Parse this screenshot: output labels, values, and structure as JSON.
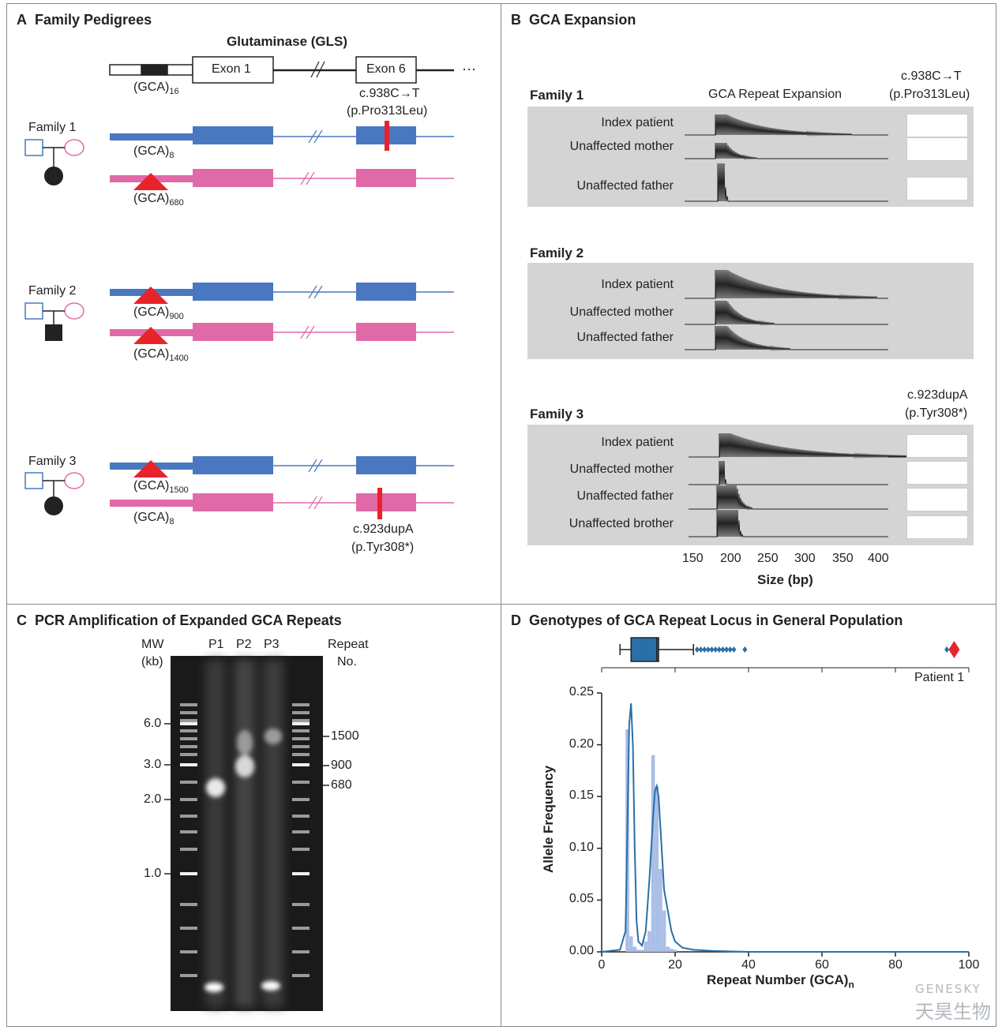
{
  "panels": {
    "a": {
      "letter": "A",
      "title": "Family Pedigrees"
    },
    "b": {
      "letter": "B",
      "title": "GCA Expansion"
    },
    "c": {
      "letter": "C",
      "title": "PCR Amplification of Expanded GCA Repeats"
    },
    "d": {
      "letter": "D",
      "title": "Genotypes of GCA Repeat Locus in General Population"
    }
  },
  "gene": {
    "name": "Glutaminase (GLS)",
    "exon1": "Exon 1",
    "exon6": "Exon 6",
    "ellipsis": "···",
    "ref_repeat": "(GCA)",
    "ref_sub": "16"
  },
  "families": [
    {
      "label": "Family 1",
      "mutation": [
        "c.938C→T",
        "(p.Pro313Leu)"
      ],
      "alleles": [
        {
          "text": "(GCA)",
          "sub": "8"
        },
        {
          "text": "(GCA)",
          "sub": "680"
        }
      ]
    },
    {
      "label": "Family 2",
      "alleles": [
        {
          "text": "(GCA)",
          "sub": "900"
        },
        {
          "text": "(GCA)",
          "sub": "1400"
        }
      ]
    },
    {
      "label": "Family 3",
      "mutation": [
        "c.923dupA",
        "(p.Tyr308*)"
      ],
      "alleles": [
        {
          "text": "(GCA)",
          "sub": "1500"
        },
        {
          "text": "(GCA)",
          "sub": "8"
        }
      ]
    }
  ],
  "expansion": {
    "header": "GCA Repeat Expansion",
    "fam1": {
      "label": "Family 1",
      "mutation": [
        "c.938C→T",
        "(p.Pro313Leu)"
      ],
      "traces": [
        "Index patient",
        "Unaffected mother",
        "Unaffected father"
      ]
    },
    "fam2": {
      "label": "Family 2",
      "traces": [
        "Index patient",
        "Unaffected mother",
        "Unaffected father"
      ]
    },
    "fam3": {
      "label": "Family 3",
      "mutation": [
        "c.923dupA",
        "(p.Tyr308*)"
      ],
      "traces": [
        "Index patient",
        "Unaffected mother",
        "Unaffected father",
        "Unaffected brother"
      ]
    },
    "xticks": [
      "150",
      "200",
      "250",
      "300",
      "350",
      "400"
    ],
    "xlabel": "Size (bp)"
  },
  "gel": {
    "mw_label": [
      "MW",
      "(kb)"
    ],
    "lanes": [
      "P1",
      "P2",
      "P3"
    ],
    "repeat_label": [
      "Repeat",
      "No."
    ],
    "mw_ticks": [
      "6.0",
      "3.0",
      "2.0",
      "1.0"
    ],
    "repeat_ticks": [
      "1500",
      "900",
      "680"
    ]
  },
  "chart_data": {
    "type": "histogram",
    "title": "Genotypes of GCA Repeat Locus in General Population",
    "xlabel": "Repeat Number (GCA)",
    "xlabel_sub": "n",
    "ylabel": "Allele Frequency",
    "xlim": [
      0,
      100
    ],
    "ylim": [
      0,
      0.25
    ],
    "xticks": [
      "0",
      "20",
      "40",
      "60",
      "80",
      "100"
    ],
    "yticks": [
      "0.00",
      "0.05",
      "0.10",
      "0.15",
      "0.20",
      "0.25"
    ],
    "bars": {
      "x": [
        7,
        8,
        9,
        10,
        11,
        12,
        13,
        14,
        15,
        16,
        17,
        18,
        19,
        20
      ],
      "values": [
        0.215,
        0.015,
        0.005,
        0.002,
        0.002,
        0.01,
        0.02,
        0.19,
        0.16,
        0.08,
        0.04,
        0.005,
        0.003,
        0.002
      ]
    },
    "density": {
      "x": [
        0,
        5,
        6.5,
        7,
        7.5,
        8,
        8.5,
        9,
        9.5,
        10,
        11,
        12,
        13,
        14,
        14.5,
        15,
        15.5,
        16,
        17,
        18,
        19,
        20,
        22,
        25,
        30,
        40,
        100
      ],
      "y": [
        0,
        0.002,
        0.02,
        0.12,
        0.22,
        0.24,
        0.2,
        0.1,
        0.03,
        0.01,
        0.006,
        0.02,
        0.07,
        0.13,
        0.155,
        0.16,
        0.15,
        0.12,
        0.06,
        0.04,
        0.02,
        0.01,
        0.004,
        0.002,
        0.001,
        0,
        0
      ]
    },
    "boxplot": {
      "whisker_low": 5,
      "q1": 8,
      "median": 15,
      "q3": 15.5,
      "whisker_high": 25,
      "outliers": [
        26,
        27,
        28,
        29,
        30,
        31,
        32,
        33,
        34,
        35,
        36,
        39,
        94
      ],
      "patient": 96
    },
    "annotation": "Patient 1"
  }
}
